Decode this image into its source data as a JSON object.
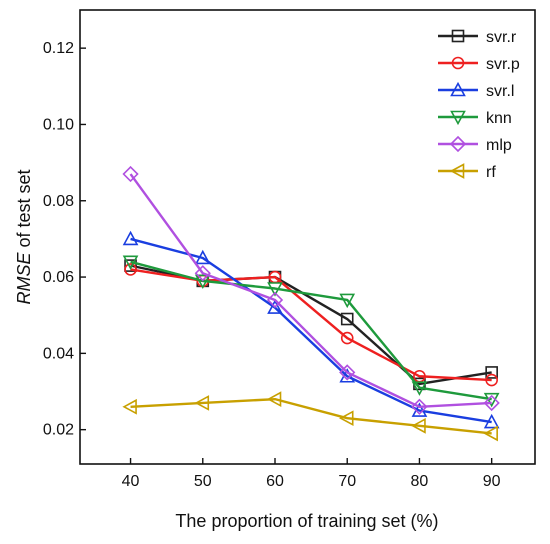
{
  "chart_data": {
    "type": "line",
    "x": [
      40,
      50,
      60,
      70,
      80,
      90
    ],
    "xlabel": "The proportion of training set (%)",
    "ylabel_italic": "RMSE",
    "ylabel_rest": " of test set",
    "xlim": [
      33,
      96
    ],
    "ylim": [
      0.011,
      0.13
    ],
    "xticks": [
      40,
      50,
      60,
      70,
      80,
      90
    ],
    "yticks": [
      0.02,
      0.04,
      0.06,
      0.08,
      0.1,
      0.12
    ],
    "ytick_labels": [
      "0.02",
      "0.04",
      "0.06",
      "0.08",
      "0.10",
      "0.12"
    ],
    "grid": false,
    "legend_position": "top-right",
    "series": [
      {
        "name": "svr.r",
        "color": "#222222",
        "marker": "square",
        "values": [
          0.063,
          0.059,
          0.06,
          0.049,
          0.032,
          0.035
        ]
      },
      {
        "name": "svr.p",
        "color": "#ee2020",
        "marker": "circle",
        "values": [
          0.062,
          0.059,
          0.06,
          0.044,
          0.034,
          0.033
        ]
      },
      {
        "name": "svr.l",
        "color": "#1a3ee0",
        "marker": "triangle-up",
        "values": [
          0.07,
          0.065,
          0.052,
          0.034,
          0.025,
          0.022
        ]
      },
      {
        "name": "knn",
        "color": "#1e9a3c",
        "marker": "triangle-down",
        "values": [
          0.064,
          0.059,
          0.057,
          0.054,
          0.031,
          0.028
        ]
      },
      {
        "name": "mlp",
        "color": "#b050e0",
        "marker": "diamond",
        "values": [
          0.087,
          0.061,
          0.054,
          0.035,
          0.026,
          0.027
        ]
      },
      {
        "name": "rf",
        "color": "#c8a000",
        "marker": "triangle-left",
        "values": [
          0.026,
          0.027,
          0.028,
          0.023,
          0.021,
          0.019
        ]
      }
    ]
  }
}
